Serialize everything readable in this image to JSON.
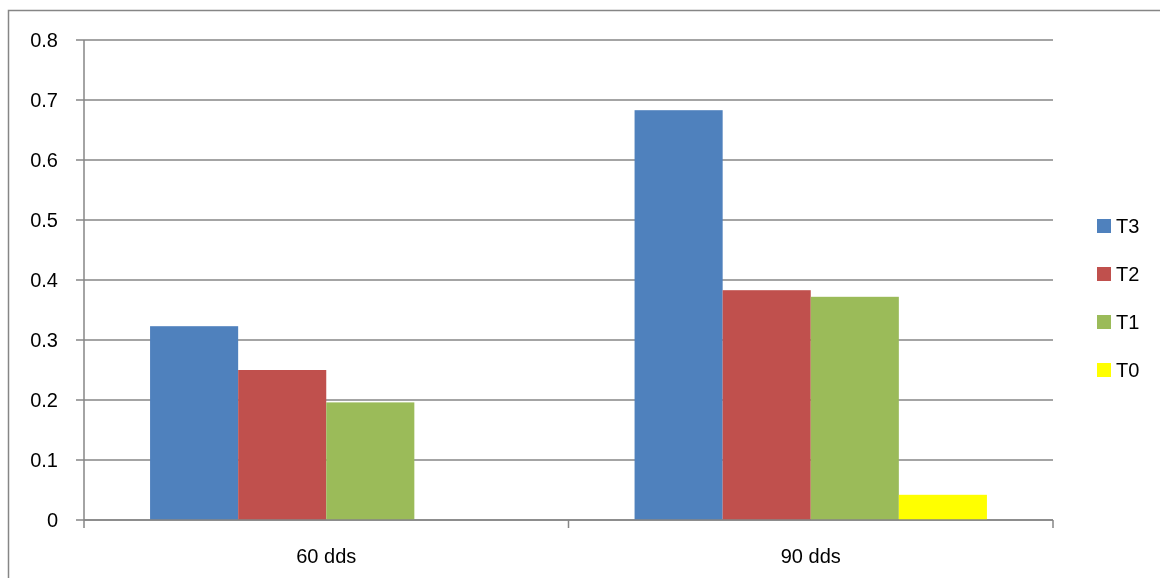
{
  "chart_data": {
    "type": "bar",
    "categories": [
      "60 dds",
      "90 dds"
    ],
    "series": [
      {
        "name": "T3",
        "color": "#4f81bd",
        "values": [
          0.323,
          0.683
        ]
      },
      {
        "name": "T2",
        "color": "#c0504d",
        "values": [
          0.25,
          0.383
        ]
      },
      {
        "name": "T1",
        "color": "#9bbb59",
        "values": [
          0.196,
          0.372
        ]
      },
      {
        "name": "T0",
        "color": "#ffff00",
        "values": [
          0,
          0.042
        ]
      }
    ],
    "ylim": [
      0,
      0.8
    ],
    "yticks": [
      0,
      0.1,
      0.2,
      0.3,
      0.4,
      0.5,
      0.6,
      0.7,
      0.8
    ],
    "grid": "y",
    "legend": "right"
  }
}
